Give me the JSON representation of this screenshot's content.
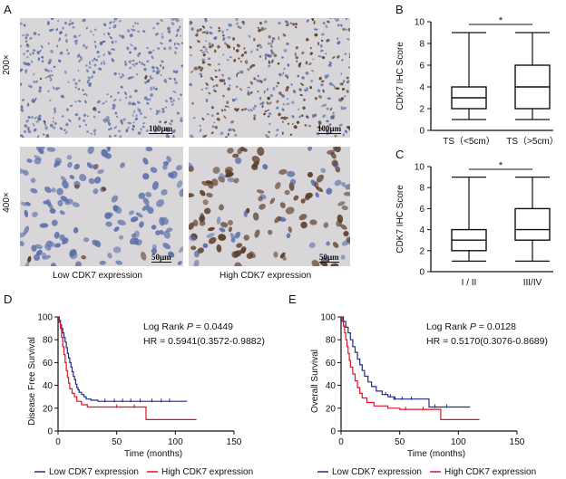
{
  "panel_letters": {
    "a": "A",
    "b": "B",
    "c": "C",
    "d": "D",
    "e": "E"
  },
  "magnifications": {
    "top": "200×",
    "bottom": "400×"
  },
  "scale_bars": {
    "top_left": "100μm",
    "top_right": "100μm",
    "bottom_left": "50μm",
    "bottom_right": "50μm"
  },
  "ihc_captions": {
    "low": "Low CDK7 expression",
    "high": "High CDK7 expression"
  },
  "colors": {
    "low_series": "#1f2a8c",
    "high_series": "#e0102a",
    "tissue_bg": "#d9d6d9",
    "nucleus_blue": "#5a6fa8",
    "nucleus_brown": "#5a3b25"
  },
  "chart_data": [
    {
      "panel": "B",
      "type": "box",
      "ylabel": "CDK7 IHC Score",
      "ylim": [
        0,
        10
      ],
      "yticks": [
        0,
        2,
        4,
        6,
        8,
        10
      ],
      "categories": [
        "TS（<5cm）",
        "TS（>5cm）"
      ],
      "boxes": [
        {
          "min": 1,
          "q1": 2,
          "median": 3,
          "q3": 4,
          "max": 9
        },
        {
          "min": 1,
          "q1": 2,
          "median": 4,
          "q3": 6,
          "max": 9
        }
      ],
      "annotation": "*"
    },
    {
      "panel": "C",
      "type": "box",
      "ylabel": "CDK7 IHC Score",
      "ylim": [
        0,
        10
      ],
      "yticks": [
        0,
        2,
        4,
        6,
        8,
        10
      ],
      "categories": [
        "I / II",
        "III/IV"
      ],
      "boxes": [
        {
          "min": 1,
          "q1": 2,
          "median": 3,
          "q3": 4,
          "max": 9
        },
        {
          "min": 1,
          "q1": 3,
          "median": 4,
          "q3": 6,
          "max": 9
        }
      ],
      "annotation": "*"
    },
    {
      "panel": "D",
      "type": "line",
      "ylabel": "Disease Free Survival",
      "xlabel": "Time (months)",
      "xlim": [
        0,
        150
      ],
      "ylim": [
        0,
        1
      ],
      "xticks": [
        0,
        50,
        100,
        150
      ],
      "yticks": [
        0,
        20,
        40,
        60,
        80,
        100
      ],
      "stats": {
        "prefix": "Log Rank ",
        "p_label": "P",
        "p_value": " = 0.0449",
        "hr": "HR = 0.5941(0.3572-0.9882)"
      },
      "legend": {
        "low": "Low CDK7 expression",
        "high": "High CDK7 expression"
      },
      "series": [
        {
          "name": "Low CDK7 expression",
          "color_key": "low_series",
          "x": [
            0,
            1,
            2,
            3,
            4,
            5,
            6,
            7,
            8,
            9,
            10,
            11,
            12,
            13,
            14,
            15,
            16,
            17,
            18,
            20,
            22,
            24,
            28,
            34,
            110
          ],
          "y": [
            1.0,
            0.97,
            0.93,
            0.9,
            0.86,
            0.82,
            0.78,
            0.73,
            0.68,
            0.64,
            0.6,
            0.56,
            0.52,
            0.48,
            0.45,
            0.41,
            0.38,
            0.36,
            0.34,
            0.32,
            0.3,
            0.28,
            0.27,
            0.26,
            0.26
          ],
          "censors": [
            40,
            48,
            55,
            62,
            70,
            80,
            88,
            95
          ]
        },
        {
          "name": "High CDK7 expression",
          "color_key": "high_series",
          "x": [
            0,
            1,
            2,
            3,
            4,
            5,
            6,
            7,
            8,
            9,
            10,
            12,
            14,
            16,
            20,
            25,
            75,
            118
          ],
          "y": [
            1.0,
            0.95,
            0.9,
            0.82,
            0.74,
            0.67,
            0.6,
            0.53,
            0.47,
            0.42,
            0.37,
            0.33,
            0.3,
            0.26,
            0.23,
            0.21,
            0.1,
            0.1
          ],
          "censors": [
            50,
            65
          ]
        }
      ]
    },
    {
      "panel": "E",
      "type": "line",
      "ylabel": "Overall Survival",
      "xlabel": "Time (months)",
      "xlim": [
        0,
        150
      ],
      "ylim": [
        0,
        1
      ],
      "xticks": [
        0,
        50,
        100,
        150
      ],
      "yticks": [
        0,
        20,
        40,
        60,
        80,
        100
      ],
      "stats": {
        "prefix": "Log Rank ",
        "p_label": "P",
        "p_value": " = 0.0128",
        "hr": "HR = 0.5170(0.3076-0.8689)"
      },
      "legend": {
        "low": "Low CDK7 expression",
        "high": "High CDK7 expression"
      },
      "series": [
        {
          "name": "Low CDK7 expression",
          "color_key": "low_series",
          "x": [
            0,
            2,
            4,
            6,
            8,
            10,
            12,
            14,
            16,
            18,
            20,
            23,
            26,
            30,
            35,
            40,
            45,
            75,
            110
          ],
          "y": [
            1.0,
            0.96,
            0.91,
            0.86,
            0.8,
            0.74,
            0.69,
            0.63,
            0.58,
            0.53,
            0.48,
            0.43,
            0.39,
            0.35,
            0.32,
            0.3,
            0.28,
            0.21,
            0.21
          ],
          "censors": [
            38,
            42,
            46,
            52,
            60,
            80,
            90
          ]
        },
        {
          "name": "High CDK7 expression",
          "color_key": "high_series",
          "x": [
            0,
            1,
            2,
            3,
            4,
            5,
            6,
            7,
            8,
            10,
            12,
            14,
            16,
            18,
            22,
            28,
            40,
            50,
            85,
            118
          ],
          "y": [
            1.0,
            0.96,
            0.92,
            0.86,
            0.8,
            0.74,
            0.68,
            0.62,
            0.56,
            0.5,
            0.44,
            0.38,
            0.33,
            0.29,
            0.25,
            0.22,
            0.2,
            0.19,
            0.1,
            0.1
          ],
          "censors": [
            55,
            70
          ]
        }
      ]
    }
  ]
}
